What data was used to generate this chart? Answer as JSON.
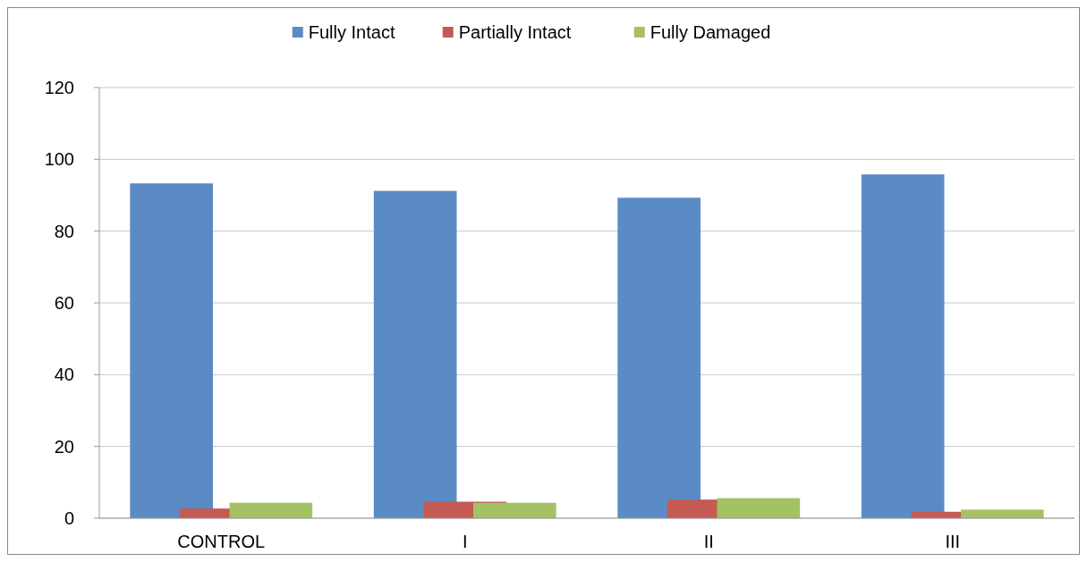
{
  "chart_data": {
    "type": "bar",
    "categories": [
      "CONTROL",
      "I",
      "II",
      "III"
    ],
    "series": [
      {
        "name": "Fully Intact",
        "color": "#5b8bc5",
        "values": [
          93.3,
          91.2,
          89.3,
          95.8
        ]
      },
      {
        "name": "Partially Intact",
        "color": "#c55a55",
        "values": [
          2.7,
          4.6,
          5.2,
          1.8
        ]
      },
      {
        "name": "Fully Damaged",
        "color": "#a3c264",
        "values": [
          4.3,
          4.3,
          5.6,
          2.4
        ]
      }
    ],
    "ylim": [
      0,
      120
    ],
    "yticks": [
      0,
      20,
      40,
      60,
      80,
      100,
      120
    ],
    "grid": "y",
    "legend": "top"
  }
}
